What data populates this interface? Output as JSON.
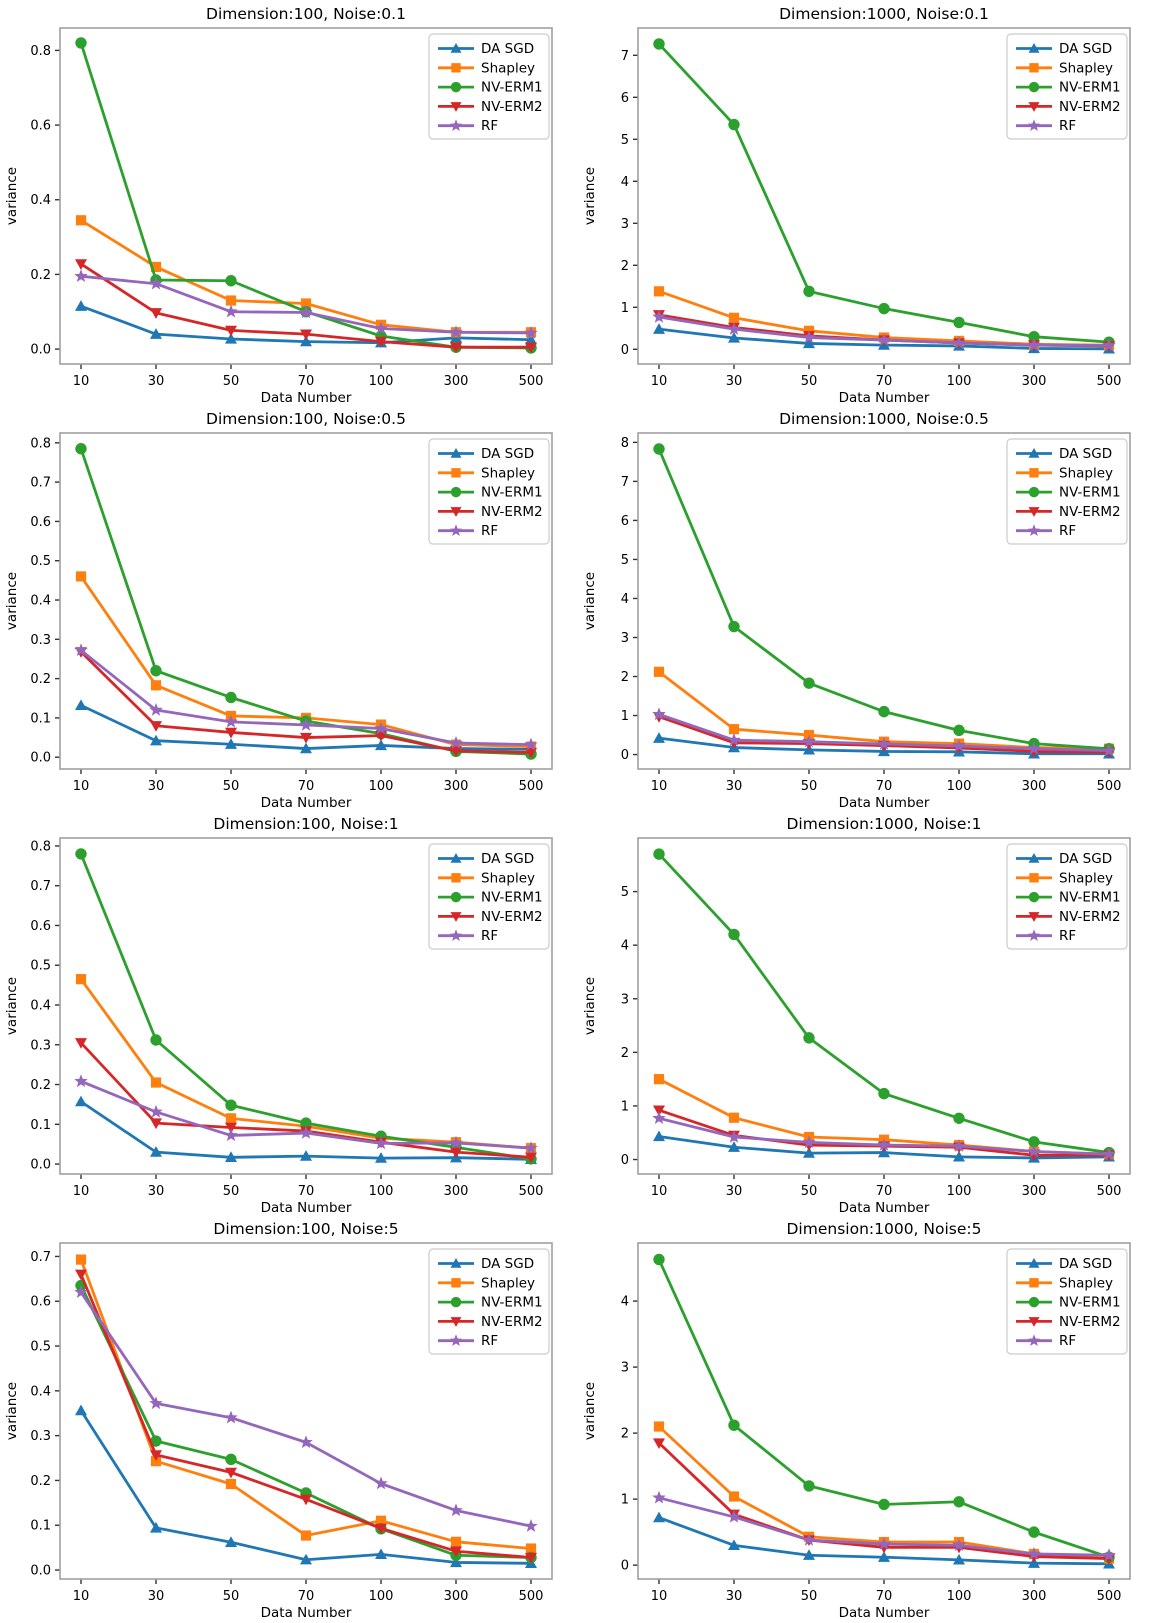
{
  "figure": {
    "layout": "4 rows x 2 columns of line subplots",
    "background": "#ffffff",
    "spine_color": "#a0a0a0",
    "tick_color": "#333333",
    "text_color": "#000000"
  },
  "legend": {
    "position": "upper right",
    "entries": [
      {
        "label": "DA SGD",
        "color": "#1f77b4",
        "marker": "triangle-up"
      },
      {
        "label": "Shapley",
        "color": "#ff7f0e",
        "marker": "square"
      },
      {
        "label": "NV-ERM1",
        "color": "#2ca02c",
        "marker": "circle"
      },
      {
        "label": "NV-ERM2",
        "color": "#d62728",
        "marker": "triangle-down"
      },
      {
        "label": "RF",
        "color": "#9467bd",
        "marker": "star"
      }
    ]
  },
  "chart_data": [
    {
      "type": "line",
      "title": "Dimension:100, Noise:0.1",
      "xlabel": "Data Number",
      "ylabel": "variance",
      "categories": [
        10,
        30,
        50,
        70,
        100,
        300,
        500
      ],
      "x_scale": "categorical",
      "grid": false,
      "legend_position": "upper right",
      "ylim": [
        -0.04,
        0.86
      ],
      "yticks": [
        0.0,
        0.2,
        0.4,
        0.6,
        0.8
      ],
      "ytick_decimals": 1,
      "series": [
        {
          "name": "DA SGD",
          "color": "#1f77b4",
          "marker": "triangle-up",
          "values": [
            0.115,
            0.04,
            0.027,
            0.02,
            0.017,
            0.03,
            0.025
          ]
        },
        {
          "name": "Shapley",
          "color": "#ff7f0e",
          "marker": "square",
          "values": [
            0.345,
            0.22,
            0.13,
            0.122,
            0.065,
            0.045,
            0.045
          ]
        },
        {
          "name": "NV-ERM1",
          "color": "#2ca02c",
          "marker": "circle",
          "values": [
            0.82,
            0.185,
            0.183,
            0.1,
            0.035,
            0.005,
            0.003
          ]
        },
        {
          "name": "NV-ERM2",
          "color": "#d62728",
          "marker": "triangle-down",
          "values": [
            0.228,
            0.097,
            0.05,
            0.04,
            0.02,
            0.005,
            0.005
          ]
        },
        {
          "name": "RF",
          "color": "#9467bd",
          "marker": "star",
          "values": [
            0.195,
            0.175,
            0.1,
            0.098,
            0.055,
            0.045,
            0.043
          ]
        }
      ]
    },
    {
      "type": "line",
      "title": "Dimension:1000, Noise:0.1",
      "xlabel": "Data Number",
      "ylabel": "variance",
      "categories": [
        10,
        30,
        50,
        70,
        100,
        300,
        500
      ],
      "x_scale": "categorical",
      "grid": false,
      "legend_position": "upper right",
      "ylim": [
        -0.35,
        7.65
      ],
      "yticks": [
        0,
        1,
        2,
        3,
        4,
        5,
        6,
        7
      ],
      "ytick_decimals": 0,
      "series": [
        {
          "name": "DA SGD",
          "color": "#1f77b4",
          "marker": "triangle-up",
          "values": [
            0.48,
            0.27,
            0.14,
            0.1,
            0.08,
            0.02,
            0.01
          ]
        },
        {
          "name": "Shapley",
          "color": "#ff7f0e",
          "marker": "square",
          "values": [
            1.38,
            0.75,
            0.44,
            0.28,
            0.2,
            0.12,
            0.1
          ]
        },
        {
          "name": "NV-ERM1",
          "color": "#2ca02c",
          "marker": "circle",
          "values": [
            7.27,
            5.35,
            1.38,
            0.97,
            0.64,
            0.3,
            0.17
          ]
        },
        {
          "name": "NV-ERM2",
          "color": "#d62728",
          "marker": "triangle-down",
          "values": [
            0.82,
            0.52,
            0.32,
            0.22,
            0.15,
            0.1,
            0.08
          ]
        },
        {
          "name": "RF",
          "color": "#9467bd",
          "marker": "star",
          "values": [
            0.77,
            0.48,
            0.28,
            0.22,
            0.15,
            0.1,
            0.09
          ]
        }
      ]
    },
    {
      "type": "line",
      "title": "Dimension:100, Noise:0.5",
      "xlabel": "Data Number",
      "ylabel": "variance",
      "categories": [
        10,
        30,
        50,
        70,
        100,
        300,
        500
      ],
      "x_scale": "categorical",
      "grid": false,
      "legend_position": "upper right",
      "ylim": [
        -0.03,
        0.825
      ],
      "yticks": [
        0.0,
        0.1,
        0.2,
        0.3,
        0.4,
        0.5,
        0.6,
        0.7,
        0.8
      ],
      "ytick_decimals": 1,
      "series": [
        {
          "name": "DA SGD",
          "color": "#1f77b4",
          "marker": "triangle-up",
          "values": [
            0.132,
            0.042,
            0.033,
            0.022,
            0.03,
            0.022,
            0.02
          ]
        },
        {
          "name": "Shapley",
          "color": "#ff7f0e",
          "marker": "square",
          "values": [
            0.46,
            0.183,
            0.105,
            0.1,
            0.083,
            0.032,
            0.027
          ]
        },
        {
          "name": "NV-ERM1",
          "color": "#2ca02c",
          "marker": "circle",
          "values": [
            0.785,
            0.22,
            0.152,
            0.092,
            0.06,
            0.015,
            0.008
          ]
        },
        {
          "name": "NV-ERM2",
          "color": "#d62728",
          "marker": "triangle-down",
          "values": [
            0.268,
            0.08,
            0.063,
            0.05,
            0.055,
            0.016,
            0.012
          ]
        },
        {
          "name": "RF",
          "color": "#9467bd",
          "marker": "star",
          "values": [
            0.272,
            0.12,
            0.09,
            0.082,
            0.073,
            0.036,
            0.032
          ]
        }
      ]
    },
    {
      "type": "line",
      "title": "Dimension:1000, Noise:0.5",
      "xlabel": "Data Number",
      "ylabel": "variance",
      "categories": [
        10,
        30,
        50,
        70,
        100,
        300,
        500
      ],
      "x_scale": "categorical",
      "grid": false,
      "legend_position": "upper right",
      "ylim": [
        -0.37,
        8.24
      ],
      "yticks": [
        0,
        1,
        2,
        3,
        4,
        5,
        6,
        7,
        8
      ],
      "ytick_decimals": 0,
      "series": [
        {
          "name": "DA SGD",
          "color": "#1f77b4",
          "marker": "triangle-up",
          "values": [
            0.42,
            0.18,
            0.12,
            0.08,
            0.07,
            0.02,
            0.02
          ]
        },
        {
          "name": "Shapley",
          "color": "#ff7f0e",
          "marker": "square",
          "values": [
            2.12,
            0.65,
            0.5,
            0.33,
            0.28,
            0.18,
            0.15
          ]
        },
        {
          "name": "NV-ERM1",
          "color": "#2ca02c",
          "marker": "circle",
          "values": [
            7.83,
            3.28,
            1.83,
            1.1,
            0.62,
            0.28,
            0.15
          ]
        },
        {
          "name": "NV-ERM2",
          "color": "#d62728",
          "marker": "triangle-down",
          "values": [
            0.97,
            0.3,
            0.28,
            0.23,
            0.17,
            0.08,
            0.06
          ]
        },
        {
          "name": "RF",
          "color": "#9467bd",
          "marker": "star",
          "values": [
            1.03,
            0.37,
            0.33,
            0.27,
            0.22,
            0.15,
            0.1
          ]
        }
      ]
    },
    {
      "type": "line",
      "title": "Dimension:100, Noise:1",
      "xlabel": "Data Number",
      "ylabel": "variance",
      "categories": [
        10,
        30,
        50,
        70,
        100,
        300,
        500
      ],
      "x_scale": "categorical",
      "grid": false,
      "legend_position": "upper right",
      "ylim": [
        -0.025,
        0.82
      ],
      "yticks": [
        0.0,
        0.1,
        0.2,
        0.3,
        0.4,
        0.5,
        0.6,
        0.7,
        0.8
      ],
      "ytick_decimals": 1,
      "series": [
        {
          "name": "DA SGD",
          "color": "#1f77b4",
          "marker": "triangle-up",
          "values": [
            0.157,
            0.03,
            0.017,
            0.02,
            0.015,
            0.016,
            0.012
          ]
        },
        {
          "name": "Shapley",
          "color": "#ff7f0e",
          "marker": "square",
          "values": [
            0.465,
            0.205,
            0.115,
            0.095,
            0.065,
            0.055,
            0.04
          ]
        },
        {
          "name": "NV-ERM1",
          "color": "#2ca02c",
          "marker": "circle",
          "values": [
            0.78,
            0.312,
            0.148,
            0.103,
            0.07,
            0.042,
            0.013
          ]
        },
        {
          "name": "NV-ERM2",
          "color": "#d62728",
          "marker": "triangle-down",
          "values": [
            0.305,
            0.103,
            0.092,
            0.083,
            0.055,
            0.03,
            0.017
          ]
        },
        {
          "name": "RF",
          "color": "#9467bd",
          "marker": "star",
          "values": [
            0.208,
            0.131,
            0.072,
            0.078,
            0.052,
            0.053,
            0.04
          ]
        }
      ]
    },
    {
      "type": "line",
      "title": "Dimension:1000, Noise:1",
      "xlabel": "Data Number",
      "ylabel": "variance",
      "categories": [
        10,
        30,
        50,
        70,
        100,
        300,
        500
      ],
      "x_scale": "categorical",
      "grid": false,
      "legend_position": "upper right",
      "ylim": [
        -0.27,
        6.0
      ],
      "yticks": [
        0,
        1,
        2,
        3,
        4,
        5
      ],
      "ytick_decimals": 0,
      "series": [
        {
          "name": "DA SGD",
          "color": "#1f77b4",
          "marker": "triangle-up",
          "values": [
            0.43,
            0.23,
            0.12,
            0.13,
            0.05,
            0.03,
            0.05
          ]
        },
        {
          "name": "Shapley",
          "color": "#ff7f0e",
          "marker": "square",
          "values": [
            1.5,
            0.78,
            0.42,
            0.37,
            0.27,
            0.15,
            0.1
          ]
        },
        {
          "name": "NV-ERM1",
          "color": "#2ca02c",
          "marker": "circle",
          "values": [
            5.7,
            4.2,
            2.27,
            1.23,
            0.77,
            0.33,
            0.13
          ]
        },
        {
          "name": "NV-ERM2",
          "color": "#d62728",
          "marker": "triangle-down",
          "values": [
            0.92,
            0.45,
            0.27,
            0.25,
            0.23,
            0.08,
            0.08
          ]
        },
        {
          "name": "RF",
          "color": "#9467bd",
          "marker": "star",
          "values": [
            0.77,
            0.42,
            0.32,
            0.27,
            0.25,
            0.15,
            0.1
          ]
        }
      ]
    },
    {
      "type": "line",
      "title": "Dimension:100, Noise:5",
      "xlabel": "Data Number",
      "ylabel": "variance",
      "categories": [
        10,
        30,
        50,
        70,
        100,
        300,
        500
      ],
      "x_scale": "categorical",
      "grid": false,
      "legend_position": "upper right",
      "ylim": [
        -0.02,
        0.73
      ],
      "yticks": [
        0.0,
        0.1,
        0.2,
        0.3,
        0.4,
        0.5,
        0.6,
        0.7
      ],
      "ytick_decimals": 1,
      "series": [
        {
          "name": "DA SGD",
          "color": "#1f77b4",
          "marker": "triangle-up",
          "values": [
            0.356,
            0.094,
            0.062,
            0.023,
            0.035,
            0.017,
            0.015
          ]
        },
        {
          "name": "Shapley",
          "color": "#ff7f0e",
          "marker": "square",
          "values": [
            0.693,
            0.243,
            0.192,
            0.077,
            0.11,
            0.063,
            0.048
          ]
        },
        {
          "name": "NV-ERM1",
          "color": "#2ca02c",
          "marker": "circle",
          "values": [
            0.635,
            0.288,
            0.247,
            0.172,
            0.092,
            0.033,
            0.028
          ]
        },
        {
          "name": "NV-ERM2",
          "color": "#d62728",
          "marker": "triangle-down",
          "values": [
            0.66,
            0.257,
            0.218,
            0.158,
            0.093,
            0.042,
            0.028
          ]
        },
        {
          "name": "RF",
          "color": "#9467bd",
          "marker": "star",
          "values": [
            0.62,
            0.372,
            0.34,
            0.285,
            0.193,
            0.133,
            0.098
          ]
        }
      ]
    },
    {
      "type": "line",
      "title": "Dimension:1000, Noise:5",
      "xlabel": "Data Number",
      "ylabel": "variance",
      "categories": [
        10,
        30,
        50,
        70,
        100,
        300,
        500
      ],
      "x_scale": "categorical",
      "grid": false,
      "legend_position": "upper right",
      "ylim": [
        -0.21,
        4.88
      ],
      "yticks": [
        0,
        1,
        2,
        3,
        4
      ],
      "ytick_decimals": 0,
      "series": [
        {
          "name": "DA SGD",
          "color": "#1f77b4",
          "marker": "triangle-up",
          "values": [
            0.72,
            0.3,
            0.15,
            0.12,
            0.08,
            0.03,
            0.02
          ]
        },
        {
          "name": "Shapley",
          "color": "#ff7f0e",
          "marker": "square",
          "values": [
            2.1,
            1.04,
            0.43,
            0.35,
            0.35,
            0.17,
            0.1
          ]
        },
        {
          "name": "NV-ERM1",
          "color": "#2ca02c",
          "marker": "circle",
          "values": [
            4.63,
            2.12,
            1.2,
            0.92,
            0.96,
            0.5,
            0.12
          ]
        },
        {
          "name": "NV-ERM2",
          "color": "#d62728",
          "marker": "triangle-down",
          "values": [
            1.85,
            0.77,
            0.38,
            0.27,
            0.27,
            0.13,
            0.1
          ]
        },
        {
          "name": "RF",
          "color": "#9467bd",
          "marker": "star",
          "values": [
            1.02,
            0.73,
            0.38,
            0.32,
            0.3,
            0.17,
            0.15
          ]
        }
      ]
    }
  ]
}
